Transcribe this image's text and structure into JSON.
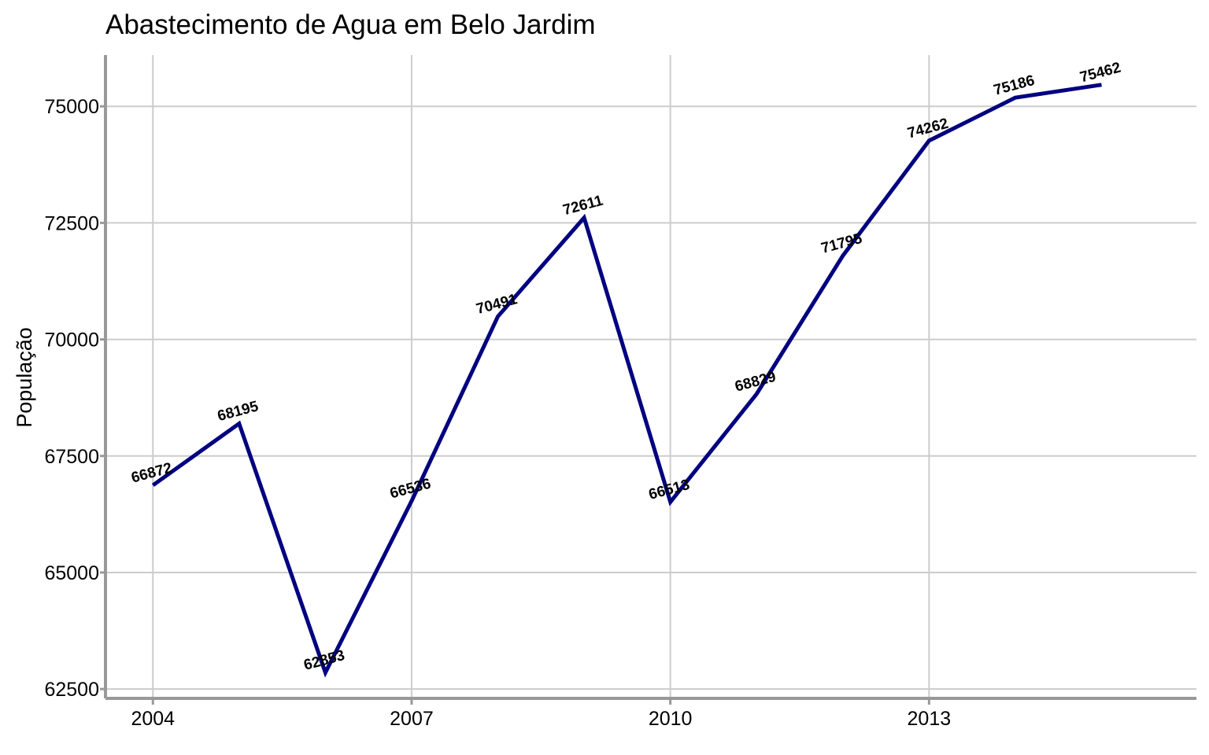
{
  "chart_data": {
    "type": "line",
    "title": "Abastecimento de Agua em Belo Jardim",
    "xlabel": "",
    "ylabel": "População",
    "x": [
      2004,
      2005,
      2006,
      2007,
      2008,
      2009,
      2010,
      2011,
      2012,
      2013,
      2014,
      2015
    ],
    "series": [
      {
        "values": [
          66872,
          68195,
          62853,
          66536,
          70491,
          72611,
          66513,
          68829,
          71795,
          74262,
          75186,
          75462
        ],
        "labels": [
          "66872",
          "68195",
          "62853",
          "66536",
          "70491",
          "72611",
          "66513",
          "68829",
          "71795",
          "74262",
          "75186",
          "75462"
        ],
        "color": "#000080"
      }
    ],
    "xticks": [
      "2004",
      "2007",
      "2010",
      "2013"
    ],
    "xtick_values": [
      2004,
      2007,
      2010,
      2013
    ],
    "yticks": [
      "62500",
      "65000",
      "67500",
      "70000",
      "72500",
      "75000"
    ],
    "ytick_values": [
      62500,
      65000,
      67500,
      70000,
      72500,
      75000
    ],
    "xlim": [
      2003.45,
      2016.1
    ],
    "ylim": [
      62300,
      76100
    ],
    "grid": true,
    "grid_color": "#cccccc",
    "axis_color": "#999999",
    "legend": "none"
  }
}
